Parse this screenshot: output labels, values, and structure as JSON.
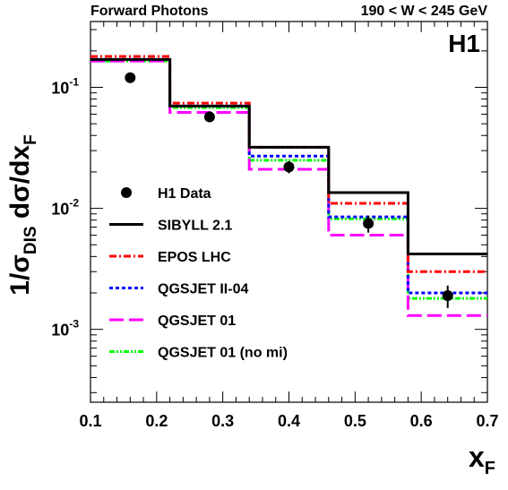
{
  "header": {
    "left": "Forward Photons",
    "right": "190 < W < 245 GeV",
    "experiment": "H1"
  },
  "chart_data": {
    "type": "line",
    "ylabel": "1/σDIS dσ/dxF",
    "ylabel_parts": {
      "a": "1/σ",
      "a_sub": "DIS",
      "b": " dσ/dx",
      "b_sub": "F"
    },
    "xlabel": "xF",
    "xlabel_parts": {
      "main": "x",
      "sub": "F"
    },
    "xlim": [
      0.1,
      0.7
    ],
    "ylim": [
      0.00025,
      0.35
    ],
    "y_scale": "log",
    "x_ticks": [
      "0.1",
      "0.2",
      "0.3",
      "0.4",
      "0.5",
      "0.6",
      "0.7"
    ],
    "y_ticks": [
      {
        "value": 0.1,
        "base": "10",
        "exp": "-1"
      },
      {
        "value": 0.01,
        "base": "10",
        "exp": "-2"
      },
      {
        "value": 0.001,
        "base": "10",
        "exp": "-3"
      }
    ],
    "bin_edges": [
      0.1,
      0.22,
      0.34,
      0.46,
      0.58,
      0.7
    ],
    "data_points": {
      "name": "H1 Data",
      "x": [
        0.16,
        0.28,
        0.4,
        0.52,
        0.64
      ],
      "y": [
        0.12,
        0.057,
        0.022,
        0.0075,
        0.0019
      ],
      "y_err": [
        0.005,
        0.004,
        0.0025,
        0.0012,
        0.0004
      ],
      "color": "#000000"
    },
    "series": [
      {
        "name": "SIBYLL 2.1",
        "values": [
          0.17,
          0.07,
          0.032,
          0.0135,
          0.0042
        ],
        "color": "#000000",
        "dash": "solid"
      },
      {
        "name": "EPOS LHC",
        "values": [
          0.18,
          0.074,
          0.032,
          0.011,
          0.003
        ],
        "color": "#ff0000",
        "dash": "dashdot"
      },
      {
        "name": "QGSJET II-04",
        "values": [
          0.17,
          0.07,
          0.027,
          0.0085,
          0.002
        ],
        "color": "#0000ff",
        "dash": "dotted"
      },
      {
        "name": "QGSJET 01",
        "values": [
          0.165,
          0.062,
          0.021,
          0.006,
          0.0013
        ],
        "color": "#ff00ff",
        "dash": "longdash"
      },
      {
        "name": "QGSJET 01 (no mi)",
        "values": [
          0.165,
          0.068,
          0.025,
          0.0082,
          0.0018
        ],
        "color": "#00ff00",
        "dash": "dashdotdot"
      }
    ],
    "legend_position": "center-left",
    "grid": false
  }
}
